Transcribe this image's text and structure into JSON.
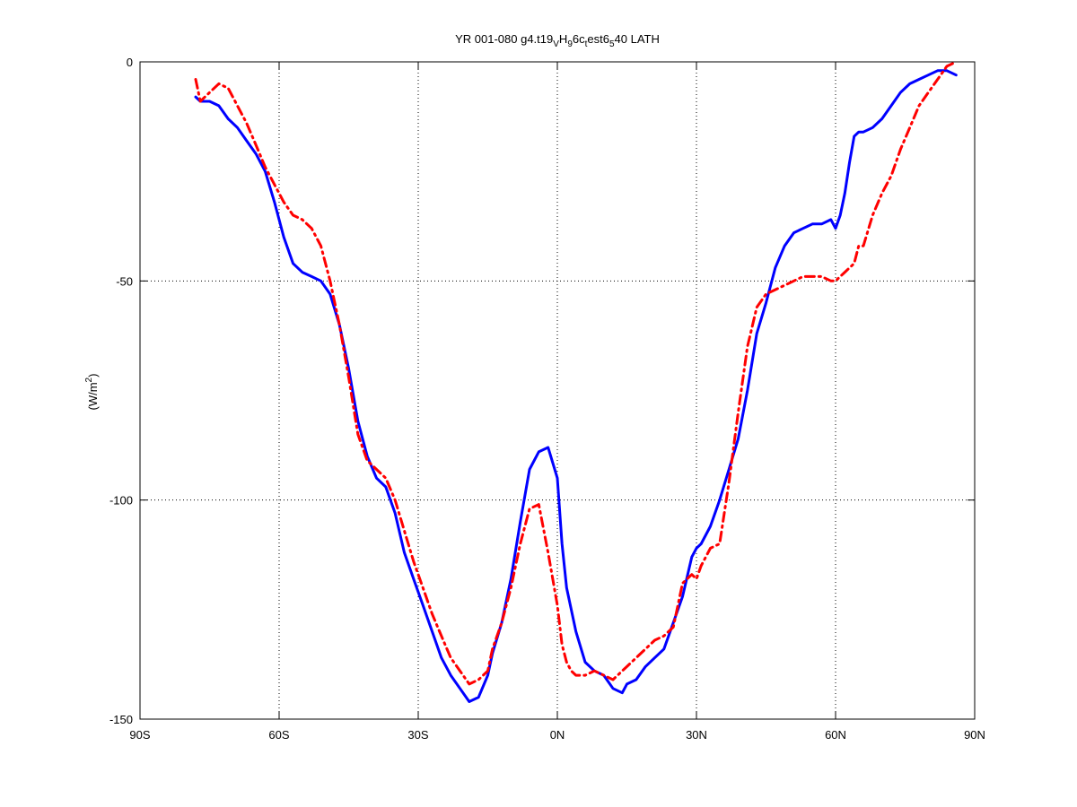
{
  "chart_data": {
    "type": "line",
    "title": "YR 001-080 g4.t19",
    "title_parts": {
      "text1": "YR 001-080 g4.t19",
      "sub1": "V",
      "text2": "H",
      "sub2": "9",
      "text3": "6c",
      "sub3": "t",
      "text4": "est6",
      "sub4": "5",
      "text5": "40 LATH"
    },
    "xlabel": "",
    "ylabel": "(W/m",
    "ylabel_sup": "2",
    "ylabel_close": ")",
    "xlim": [
      -90,
      90
    ],
    "ylim": [
      -150,
      0
    ],
    "xticks": [
      -90,
      -60,
      -30,
      0,
      30,
      60,
      90
    ],
    "xtick_labels": [
      "90S",
      "60S",
      "30S",
      "0N",
      "30N",
      "60N",
      "90N"
    ],
    "yticks": [
      -150,
      -100,
      -50,
      0
    ],
    "ytick_labels": [
      "-150",
      "-100",
      "-50",
      "0"
    ],
    "grid": true,
    "series": [
      {
        "color": "#0000ff",
        "style": "solid",
        "x": [
          -78,
          -77,
          -75,
          -73,
          -71,
          -69,
          -67,
          -65,
          -63,
          -61,
          -59,
          -57,
          -55,
          -53,
          -51,
          -49,
          -47,
          -45,
          -43,
          -41,
          -39,
          -37,
          -35,
          -33,
          -31,
          -29,
          -27,
          -25,
          -23,
          -21,
          -19,
          -17,
          -15,
          -14,
          -12,
          -10,
          -8,
          -6,
          -4,
          -2,
          0,
          1,
          2,
          3,
          4,
          6,
          8,
          10,
          12,
          14,
          15,
          17,
          19,
          21,
          23,
          25,
          27,
          29,
          30,
          31,
          33,
          35,
          37,
          39,
          41,
          43,
          45,
          47,
          49,
          51,
          53,
          55,
          57,
          59,
          60,
          61,
          62,
          63,
          64,
          65,
          66,
          68,
          70,
          72,
          74,
          76,
          78,
          80,
          82,
          84,
          86
        ],
        "y": [
          -8,
          -9,
          -9,
          -10,
          -13,
          -15,
          -18,
          -21,
          -25,
          -32,
          -40,
          -46,
          -48,
          -49,
          -50,
          -53,
          -60,
          -70,
          -82,
          -90,
          -95,
          -97,
          -103,
          -112,
          -118,
          -124,
          -130,
          -136,
          -140,
          -143,
          -146,
          -145,
          -140,
          -135,
          -128,
          -118,
          -105,
          -93,
          -89,
          -88,
          -95,
          -110,
          -120,
          -125,
          -130,
          -137,
          -139,
          -140,
          -143,
          -144,
          -142,
          -141,
          -138,
          -136,
          -134,
          -128,
          -122,
          -113,
          -111,
          -110,
          -106,
          -100,
          -93,
          -86,
          -75,
          -62,
          -55,
          -47,
          -42,
          -39,
          -38,
          -37,
          -37,
          -36,
          -38,
          -35,
          -30,
          -23,
          -17,
          -16,
          -16,
          -15,
          -13,
          -10,
          -7,
          -5,
          -4,
          -3,
          -2,
          -2,
          -3
        ]
      },
      {
        "color": "#ff0000",
        "style": "dashdot",
        "x": [
          -78,
          -77,
          -75,
          -73,
          -71,
          -69,
          -67,
          -65,
          -63,
          -61,
          -59,
          -57,
          -55,
          -53,
          -51,
          -49,
          -47,
          -45,
          -43,
          -41,
          -39,
          -37,
          -35,
          -33,
          -31,
          -29,
          -27,
          -25,
          -23,
          -21,
          -19,
          -17,
          -15,
          -14,
          -12,
          -10,
          -8,
          -6,
          -4,
          -2,
          0,
          1,
          2,
          3,
          4,
          6,
          8,
          10,
          12,
          14,
          15,
          17,
          19,
          21,
          23,
          25,
          27,
          29,
          30,
          31,
          33,
          35,
          37,
          39,
          41,
          43,
          45,
          47,
          49,
          51,
          53,
          55,
          57,
          59,
          60,
          61,
          62,
          63,
          64,
          65,
          66,
          68,
          70,
          72,
          74,
          76,
          78,
          80,
          82,
          84,
          86
        ],
        "y": [
          -4,
          -9,
          -7,
          -5,
          -6,
          -10,
          -14,
          -19,
          -24,
          -28,
          -32,
          -35,
          -36,
          -38,
          -42,
          -50,
          -60,
          -72,
          -85,
          -91,
          -93,
          -95,
          -100,
          -107,
          -114,
          -120,
          -126,
          -131,
          -136,
          -139,
          -142,
          -141,
          -139,
          -134,
          -128,
          -120,
          -110,
          -102,
          -101,
          -112,
          -124,
          -133,
          -137,
          -139,
          -140,
          -140,
          -139,
          -140,
          -141,
          -139,
          -138,
          -136,
          -134,
          -132,
          -131,
          -129,
          -119,
          -117,
          -118,
          -115,
          -111,
          -110,
          -96,
          -80,
          -65,
          -56,
          -53,
          -52,
          -51,
          -50,
          -49,
          -49,
          -49,
          -50,
          -50,
          -49,
          -48,
          -47,
          -46,
          -42,
          -42,
          -35,
          -30,
          -26,
          -20,
          -15,
          -10,
          -7,
          -4,
          -1,
          0
        ]
      }
    ]
  }
}
